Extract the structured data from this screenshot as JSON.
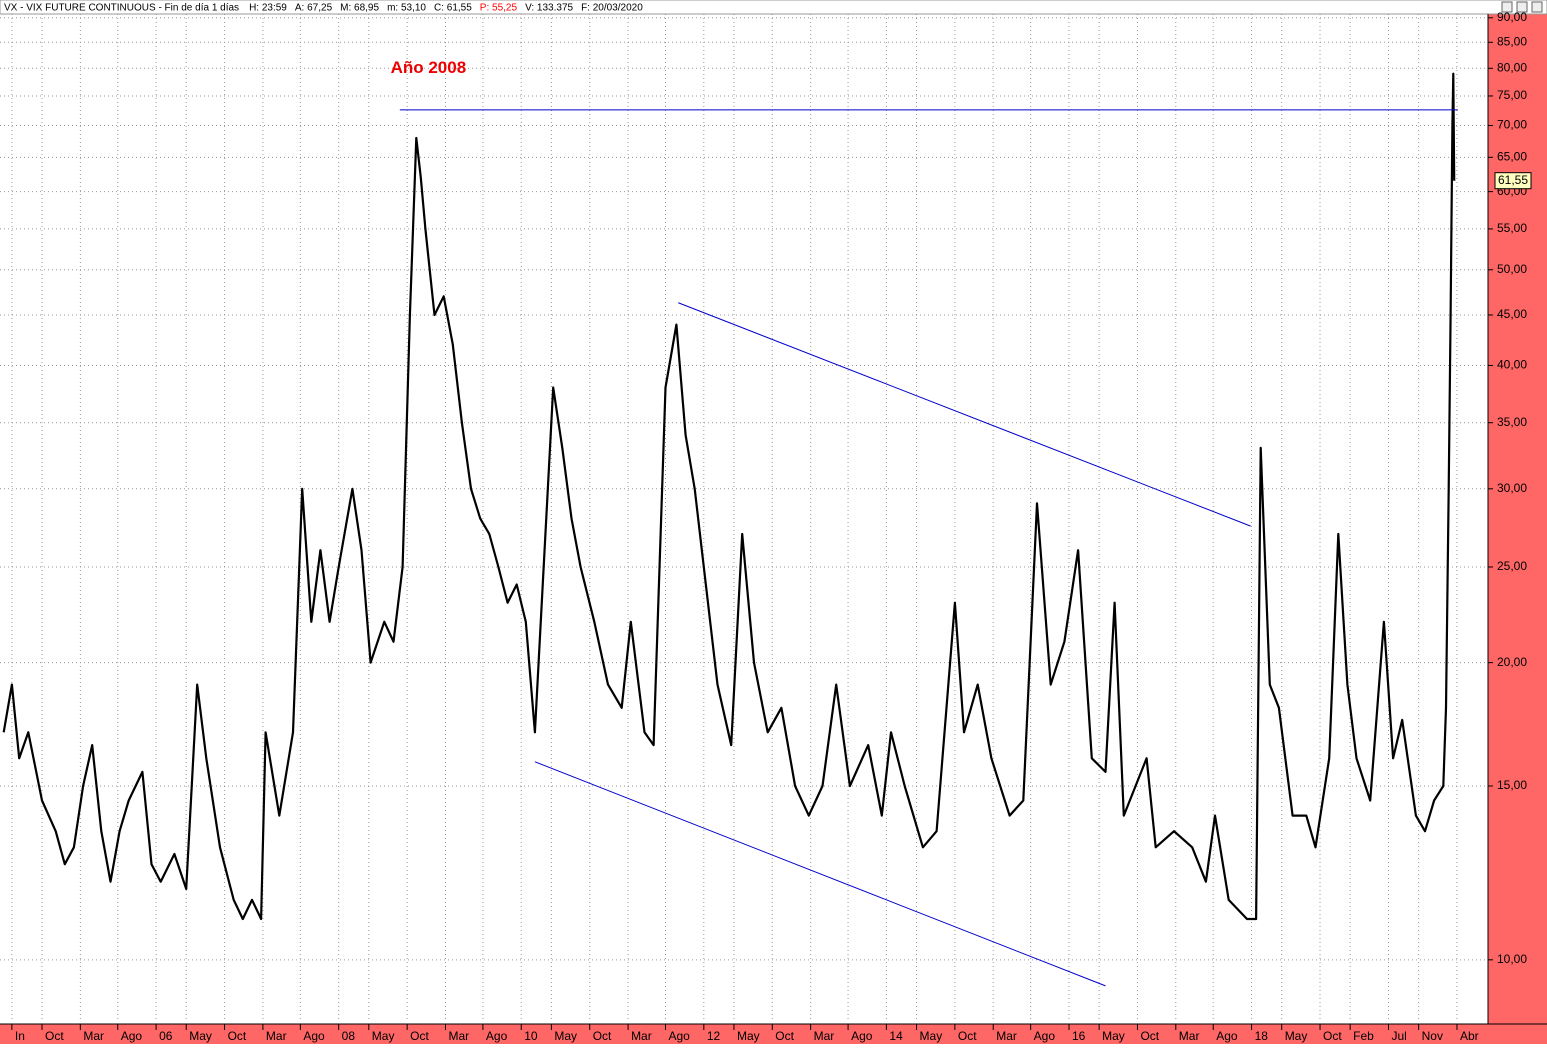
{
  "header": {
    "title": "VX - VIX FUTURE CONTINUOUS - Fin de día 1 días",
    "fields": [
      {
        "text": "H: 23:59",
        "color": "#000000"
      },
      {
        "text": "A: 67,25",
        "color": "#000000"
      },
      {
        "text": "M: 68,95",
        "color": "#000000"
      },
      {
        "text": "m: 53,10",
        "color": "#000000"
      },
      {
        "text": "C: 61,55",
        "color": "#000000"
      },
      {
        "text": "P: 55,25",
        "color": "#ff0000"
      },
      {
        "text": "V: 133.375",
        "color": "#000000"
      },
      {
        "text": "F: 20/03/2020",
        "color": "#000000"
      }
    ]
  },
  "chart_data": {
    "type": "line",
    "log_y": true,
    "grid": true,
    "annotation": {
      "text": "Año 2008",
      "color": "#ee0000",
      "x": 2008.7,
      "y": 80
    },
    "last_value_label": "61,55",
    "xlim": [
      2004.29,
      2020.59
    ],
    "ylim": [
      8.65,
      90.8
    ],
    "xticks": [
      {
        "value": 2004.42,
        "label": "In"
      },
      {
        "value": 2004.75,
        "label": "Oct"
      },
      {
        "value": 2005.17,
        "label": "Mar"
      },
      {
        "value": 2005.58,
        "label": "Ago"
      },
      {
        "value": 2006,
        "label": "06"
      },
      {
        "value": 2006.33,
        "label": "May"
      },
      {
        "value": 2006.75,
        "label": "Oct"
      },
      {
        "value": 2007.17,
        "label": "Mar"
      },
      {
        "value": 2007.58,
        "label": "Ago"
      },
      {
        "value": 2008,
        "label": "08"
      },
      {
        "value": 2008.33,
        "label": "May"
      },
      {
        "value": 2008.75,
        "label": "Oct"
      },
      {
        "value": 2009.17,
        "label": "Mar"
      },
      {
        "value": 2009.58,
        "label": "Ago"
      },
      {
        "value": 2010,
        "label": "10"
      },
      {
        "value": 2010.33,
        "label": "May"
      },
      {
        "value": 2010.75,
        "label": "Oct"
      },
      {
        "value": 2011.17,
        "label": "Mar"
      },
      {
        "value": 2011.58,
        "label": "Ago"
      },
      {
        "value": 2012,
        "label": "12"
      },
      {
        "value": 2012.33,
        "label": "May"
      },
      {
        "value": 2012.75,
        "label": "Oct"
      },
      {
        "value": 2013.17,
        "label": "Mar"
      },
      {
        "value": 2013.58,
        "label": "Ago"
      },
      {
        "value": 2014,
        "label": "14"
      },
      {
        "value": 2014.33,
        "label": "May"
      },
      {
        "value": 2014.75,
        "label": "Oct"
      },
      {
        "value": 2015.17,
        "label": "Mar"
      },
      {
        "value": 2015.58,
        "label": "Ago"
      },
      {
        "value": 2016,
        "label": "16"
      },
      {
        "value": 2016.33,
        "label": "May"
      },
      {
        "value": 2016.75,
        "label": "Oct"
      },
      {
        "value": 2017.17,
        "label": "Mar"
      },
      {
        "value": 2017.58,
        "label": "Ago"
      },
      {
        "value": 2018,
        "label": "18"
      },
      {
        "value": 2018.33,
        "label": "May"
      },
      {
        "value": 2018.75,
        "label": "Oct"
      },
      {
        "value": 2019.08,
        "label": "Feb"
      },
      {
        "value": 2019.5,
        "label": "Jul"
      },
      {
        "value": 2019.83,
        "label": "Nov"
      },
      {
        "value": 2020.25,
        "label": "Abr"
      }
    ],
    "yticks": [
      {
        "value": 10,
        "label": "10,00"
      },
      {
        "value": 15,
        "label": "15,00"
      },
      {
        "value": 20,
        "label": "20,00"
      },
      {
        "value": 25,
        "label": "25,00"
      },
      {
        "value": 30,
        "label": "30,00"
      },
      {
        "value": 35,
        "label": "35,00"
      },
      {
        "value": 40,
        "label": "40,00"
      },
      {
        "value": 45,
        "label": "45,00"
      },
      {
        "value": 50,
        "label": "50,00"
      },
      {
        "value": 55,
        "label": "55,00"
      },
      {
        "value": 60,
        "label": "60,00"
      },
      {
        "value": 65,
        "label": "65,00"
      },
      {
        "value": 70,
        "label": "70,00"
      },
      {
        "value": 75,
        "label": "75,00"
      },
      {
        "value": 80,
        "label": "80,00"
      },
      {
        "value": 85,
        "label": "85,00"
      },
      {
        "value": 90,
        "label": "90,00"
      }
    ],
    "series": [
      {
        "name": "VX",
        "color": "#000000",
        "x": [
          2004.33,
          2004.42,
          2004.5,
          2004.6,
          2004.75,
          2004.9,
          2005.0,
          2005.1,
          2005.2,
          2005.3,
          2005.4,
          2005.5,
          2005.6,
          2005.7,
          2005.85,
          2005.95,
          2006.05,
          2006.2,
          2006.33,
          2006.45,
          2006.55,
          2006.7,
          2006.85,
          2006.95,
          2007.05,
          2007.15,
          2007.2,
          2007.35,
          2007.5,
          2007.6,
          2007.7,
          2007.8,
          2007.9,
          2008.0,
          2008.15,
          2008.25,
          2008.35,
          2008.5,
          2008.6,
          2008.7,
          2008.78,
          2008.85,
          2008.9,
          2008.95,
          2009.05,
          2009.15,
          2009.25,
          2009.35,
          2009.45,
          2009.55,
          2009.65,
          2009.75,
          2009.85,
          2009.95,
          2010.05,
          2010.15,
          2010.35,
          2010.45,
          2010.55,
          2010.65,
          2010.8,
          2010.95,
          2011.1,
          2011.2,
          2011.35,
          2011.45,
          2011.58,
          2011.7,
          2011.8,
          2011.9,
          2012.0,
          2012.15,
          2012.3,
          2012.42,
          2012.55,
          2012.7,
          2012.85,
          2013.0,
          2013.15,
          2013.3,
          2013.45,
          2013.6,
          2013.8,
          2013.95,
          2014.05,
          2014.2,
          2014.4,
          2014.55,
          2014.75,
          2014.85,
          2015.0,
          2015.15,
          2015.35,
          2015.5,
          2015.65,
          2015.8,
          2015.95,
          2016.1,
          2016.25,
          2016.4,
          2016.5,
          2016.6,
          2016.85,
          2016.95,
          2017.15,
          2017.35,
          2017.5,
          2017.6,
          2017.75,
          2017.95,
          2018.05,
          2018.1,
          2018.2,
          2018.3,
          2018.45,
          2018.6,
          2018.7,
          2018.85,
          2018.95,
          2019.05,
          2019.15,
          2019.3,
          2019.45,
          2019.55,
          2019.65,
          2019.8,
          2019.9,
          2020.0,
          2020.1,
          2020.13,
          2020.16,
          2020.18,
          2020.2,
          2020.21,
          2020.22
        ],
        "values": [
          17,
          19,
          16,
          17,
          14.5,
          13.5,
          12.5,
          13,
          15,
          16.5,
          13.5,
          12,
          13.5,
          14.5,
          15.5,
          12.5,
          12,
          12.8,
          11.8,
          19,
          16,
          13,
          11.5,
          11,
          11.5,
          11,
          17,
          14,
          17,
          30,
          22,
          26,
          22,
          25,
          30,
          26,
          20,
          22,
          21,
          25,
          45,
          68,
          62,
          55,
          45,
          47,
          42,
          35,
          30,
          28,
          27,
          25,
          23,
          24,
          22,
          17,
          38,
          33,
          28,
          25,
          22,
          19,
          18,
          22,
          17,
          16.5,
          38,
          44,
          34,
          30,
          25,
          19,
          16.5,
          27,
          20,
          17,
          18,
          15,
          14,
          15,
          19,
          15,
          16.5,
          14,
          17,
          15,
          13,
          13.5,
          23,
          17,
          19,
          16,
          14,
          14.5,
          29,
          19,
          21,
          26,
          16,
          15.5,
          23,
          14,
          16,
          13,
          13.5,
          13,
          12,
          14,
          11.5,
          11,
          11,
          33,
          19,
          18,
          14,
          14,
          13,
          16,
          27,
          19,
          16,
          14.5,
          22,
          16,
          17.5,
          14,
          13.5,
          14.5,
          15,
          18,
          30,
          45,
          70,
          79,
          61.55
        ]
      }
    ],
    "lines": [
      {
        "color": "#0000cc",
        "x": [
          2008.67,
          2020.26
        ],
        "y": [
          72.6,
          72.6
        ]
      },
      {
        "color": "#0000cc",
        "x": [
          2011.72,
          2017.99
        ],
        "y": [
          46.3,
          27.5
        ]
      },
      {
        "color": "#0000cc",
        "x": [
          2010.15,
          2016.4
        ],
        "y": [
          15.87,
          9.41
        ]
      }
    ]
  }
}
